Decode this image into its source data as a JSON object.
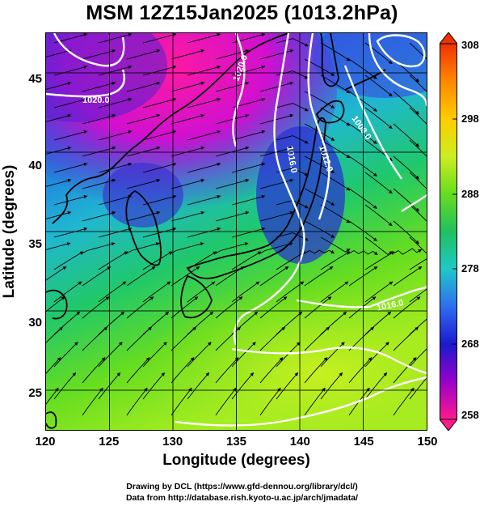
{
  "title": "MSM 12Z15Jan2025 (1013.2hPa)",
  "xaxis": {
    "label": "Longitude (degrees)",
    "ticks": [
      "120",
      "125",
      "130",
      "135",
      "140",
      "145",
      "150"
    ]
  },
  "yaxis": {
    "label": "Latitude  (degrees)",
    "ticks": [
      "45",
      "40",
      "35",
      "30",
      "25"
    ]
  },
  "colorbar": {
    "ticks": [
      "308",
      "298",
      "288",
      "278",
      "268",
      "258"
    ],
    "colors": [
      "#ff1a8c",
      "#9900cc",
      "#1a1acc",
      "#2f6df0",
      "#20c8c8",
      "#20c060",
      "#66dd20",
      "#ccee20",
      "#ffcc00",
      "#ff8800",
      "#ee3300"
    ]
  },
  "contours": [
    "1020.0",
    "1020.0",
    "1016.0",
    "1012.0",
    "1008.0",
    "1016.0"
  ],
  "credits": [
    "Drawing by DCL (https://www.gfd-dennou.org/library/dcl/)",
    "Data from http://database.rish.kyoto-u.ac.jp/arch/jmadata/"
  ],
  "chart_data": {
    "type": "heatmap",
    "title": "MSM 12Z15Jan2025 (1013.2hPa)",
    "xlabel": "Longitude (degrees)",
    "ylabel": "Latitude  (degrees)",
    "xlim": [
      120,
      150
    ],
    "ylim": [
      22.5,
      47.5
    ],
    "x_ticks": [
      120,
      125,
      130,
      135,
      140,
      145,
      150
    ],
    "y_ticks": [
      25,
      30,
      35,
      40,
      45
    ],
    "colorbar_range": [
      258,
      308
    ],
    "colorbar_ticks": [
      258,
      268,
      278,
      288,
      298,
      308
    ],
    "grid": true,
    "overlays": [
      "wind streamlines",
      "pressure contours (white)",
      "coastlines"
    ],
    "contour_labels": [
      "1020.0",
      "1020.0",
      "1016.0",
      "1012.0",
      "1008.0",
      "1016.0"
    ]
  }
}
